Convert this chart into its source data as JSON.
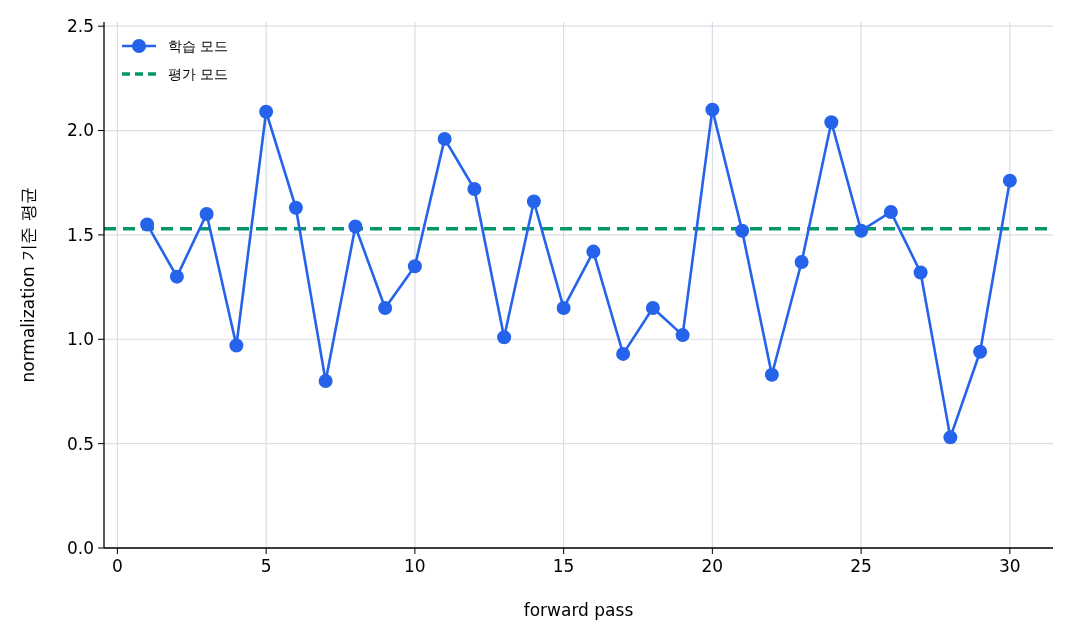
{
  "chart_data": {
    "type": "line",
    "xlabel": "forward pass",
    "ylabel": "normalization 기준 평균",
    "x": [
      1,
      2,
      3,
      4,
      5,
      6,
      7,
      8,
      9,
      10,
      11,
      12,
      13,
      14,
      15,
      16,
      17,
      18,
      19,
      20,
      21,
      22,
      23,
      24,
      25,
      26,
      27,
      28,
      29,
      30
    ],
    "series": [
      {
        "name": "학습 모드",
        "color": "#2563eb",
        "values": [
          1.55,
          1.3,
          1.6,
          0.97,
          2.09,
          1.63,
          0.8,
          1.54,
          1.15,
          1.35,
          1.96,
          1.72,
          1.01,
          1.66,
          1.15,
          1.42,
          0.93,
          1.15,
          1.02,
          2.1,
          1.52,
          0.83,
          1.37,
          2.04,
          1.52,
          1.61,
          1.32,
          0.53,
          0.94,
          1.76
        ]
      }
    ],
    "ref_lines": [
      {
        "axis": "y",
        "value": 1.53,
        "label": "평가 모드",
        "color": "#059669",
        "line_style": "dashed"
      }
    ],
    "xlim": [
      -0.45,
      31.45
    ],
    "xticks": [
      0,
      5,
      10,
      15,
      20,
      25,
      30
    ],
    "ylim": [
      0,
      2.52
    ],
    "yticks": [
      {
        "value": 0,
        "label": "0.0"
      },
      {
        "value": 0.5,
        "label": "0.5"
      },
      {
        "value": 1,
        "label": "1.0"
      },
      {
        "value": 1.5,
        "label": "1.5"
      },
      {
        "value": 2,
        "label": "2.0"
      },
      {
        "value": 2.5,
        "label": "2.5"
      }
    ],
    "grid": true,
    "legend": "top left",
    "marker": "circle",
    "line_style": "solid"
  }
}
